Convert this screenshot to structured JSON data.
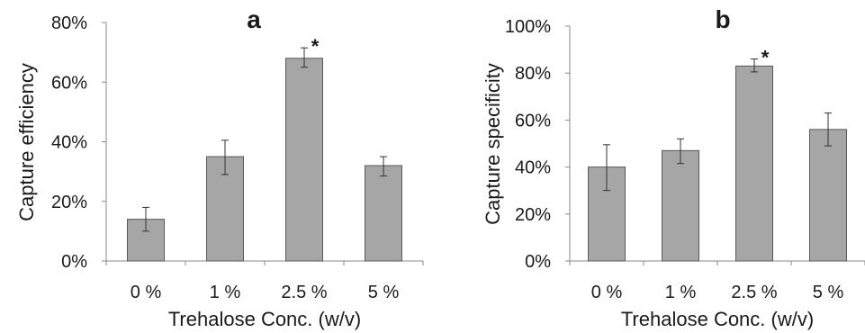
{
  "chart_data": [
    {
      "type": "bar",
      "panel_label": "a",
      "categories": [
        "0 %",
        "1 %",
        "2.5 %",
        "5 %"
      ],
      "values": [
        0.14,
        0.35,
        0.68,
        0.32
      ],
      "error_low": [
        0.04,
        0.06,
        0.03,
        0.035
      ],
      "error_high": [
        0.04,
        0.055,
        0.035,
        0.03
      ],
      "significance": [
        "",
        "",
        "*",
        ""
      ],
      "xlabel": "Trehalose Conc. (w/v)",
      "ylabel": "Capture efficiency",
      "ylim": [
        0,
        0.8
      ],
      "yticks": [
        "0%",
        "20%",
        "40%",
        "60%",
        "80%"
      ],
      "grid": false,
      "bar_color": "#a6a6a6"
    },
    {
      "type": "bar",
      "panel_label": "b",
      "categories": [
        "0 %",
        "1 %",
        "2.5 %",
        "5 %"
      ],
      "values": [
        0.4,
        0.47,
        0.83,
        0.56
      ],
      "error_low": [
        0.1,
        0.055,
        0.025,
        0.07
      ],
      "error_high": [
        0.095,
        0.05,
        0.03,
        0.07
      ],
      "significance": [
        "",
        "",
        "*",
        ""
      ],
      "xlabel": "Trehalose Conc. (w/v)",
      "ylabel": "Capture specificity",
      "ylim": [
        0,
        1.0
      ],
      "yticks": [
        "0%",
        "20%",
        "40%",
        "60%",
        "80%",
        "100%"
      ],
      "grid": false,
      "bar_color": "#a6a6a6"
    }
  ]
}
